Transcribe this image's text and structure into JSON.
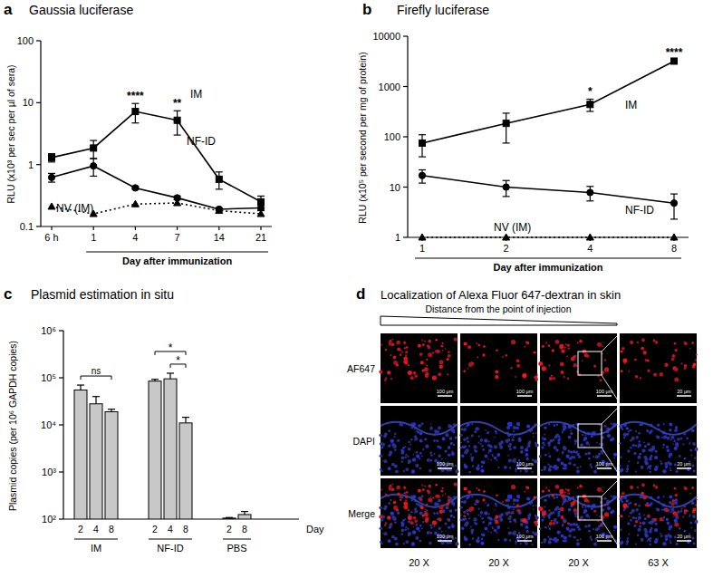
{
  "chart_data": [
    {
      "type": "line",
      "panel": "a",
      "title": "Gaussia luciferase",
      "y_label": "RLU (x10³ per sec per µl of sera)",
      "x_label": "Day after immunization",
      "categories": [
        "6 h",
        "1",
        "4",
        "7",
        "14",
        "21"
      ],
      "log": "y",
      "ylim": [
        0.1,
        100
      ],
      "yticks": [
        0.1,
        1,
        10,
        100
      ],
      "grid": false,
      "series": [
        {
          "name": "IM",
          "color": "#000000",
          "marker": "square",
          "line_style": "solid",
          "values": [
            1.3,
            1.85,
            7.2,
            5.2,
            0.58,
            0.25
          ],
          "errors": [
            0.2,
            0.6,
            2.5,
            2.2,
            0.18,
            0.06
          ]
        },
        {
          "name": "NF-ID",
          "color": "#000000",
          "marker": "circle",
          "line_style": "solid",
          "values": [
            0.62,
            0.95,
            0.42,
            0.29,
            0.19,
            0.2
          ],
          "errors": [
            0.1,
            0.3,
            0.02,
            0.02,
            0.01,
            0.02
          ]
        },
        {
          "name": "NV (IM)",
          "color": "#000000",
          "marker": "triangle",
          "line_style": "dotted",
          "values": [
            0.21,
            0.16,
            0.23,
            0.24,
            0.18,
            0.16
          ]
        }
      ],
      "annotations": [
        {
          "text": "****",
          "index": 2
        },
        {
          "text": "**",
          "index": 3
        }
      ]
    },
    {
      "type": "line",
      "panel": "b",
      "title": "Firefly luciferase",
      "y_label": "RLU (x10⁵ per second per mg of protein)",
      "x_label": "Day after immunization",
      "categories": [
        "1",
        "2",
        "4",
        "8"
      ],
      "log": "y",
      "ylim": [
        1,
        10000
      ],
      "yticks": [
        1,
        10,
        100,
        1000,
        10000
      ],
      "grid": false,
      "series": [
        {
          "name": "IM",
          "color": "#000000",
          "marker": "square",
          "line_style": "solid",
          "values": [
            75,
            185,
            440,
            3200
          ],
          "errors": [
            35,
            110,
            120,
            200
          ]
        },
        {
          "name": "NF-ID",
          "color": "#000000",
          "marker": "circle",
          "line_style": "solid",
          "values": [
            17,
            10,
            7.8,
            4.8
          ],
          "errors": [
            5,
            3.5,
            2.5,
            2.5
          ]
        },
        {
          "name": "NV (IM)",
          "color": "#000000",
          "marker": "triangle",
          "line_style": "dotted",
          "values": [
            1,
            1,
            1,
            1
          ]
        }
      ],
      "annotations": [
        {
          "text": "*",
          "index": 2
        },
        {
          "text": "****",
          "index": 3
        }
      ]
    },
    {
      "type": "bar",
      "panel": "c",
      "title": "Plasmid estimation in situ",
      "y_label": "Plasmid copies (per 10⁶ GAPDH copies)",
      "x_label": "Day",
      "log": "y",
      "ylim": [
        100,
        1000000
      ],
      "yticks": [
        {
          "value": 100,
          "label": "10²"
        },
        {
          "value": 1000,
          "label": "10³"
        },
        {
          "value": 10000,
          "label": "10⁴"
        },
        {
          "value": 100000,
          "label": "10⁵"
        },
        {
          "value": 1000000,
          "label": "10⁶"
        }
      ],
      "color": "#c8c8c8",
      "grid": false,
      "groups": [
        {
          "label": "IM",
          "categories": [
            "2",
            "4",
            "8"
          ],
          "values": [
            55000,
            28000,
            19000
          ],
          "errors": [
            15000,
            12000,
            2500
          ]
        },
        {
          "label": "NF-ID",
          "categories": [
            "2",
            "4",
            "8"
          ],
          "values": [
            85000,
            95000,
            11000
          ],
          "errors": [
            8000,
            30000,
            3500
          ]
        },
        {
          "label": "PBS",
          "categories": [
            "2",
            "8"
          ],
          "values": [
            105,
            125
          ],
          "errors": [
            3,
            20
          ]
        }
      ],
      "brackets": [
        {
          "group": 0,
          "from": 0,
          "to": 2,
          "text": "ns"
        },
        {
          "group": 1,
          "from": 1,
          "to": 2,
          "text": "*"
        },
        {
          "group": 1,
          "from": 0,
          "to": 2,
          "text": "*"
        }
      ]
    }
  ],
  "image_panel": {
    "panel": "d",
    "title": "Localization of Alexa Fluor 647-dextran in skin",
    "gradient_label": "Distance from the point of injection",
    "rows": [
      "AF647",
      "DAPI",
      "Merge"
    ],
    "columns": [
      "20 X",
      "20 X",
      "20 X",
      "63 X"
    ],
    "scale_bars": [
      "100 μm",
      "100 μm",
      "100 μm",
      "20 μm"
    ]
  }
}
